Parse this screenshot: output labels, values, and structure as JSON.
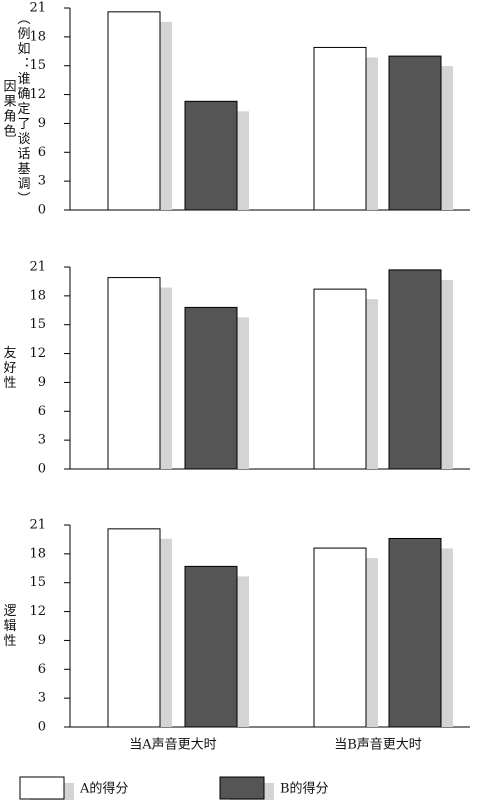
{
  "chart_data": [
    {
      "type": "bar",
      "y_label": [
        "因果角色",
        "（例如：谁确定了谈话基调）"
      ],
      "categories": [
        null,
        null
      ],
      "series": [
        {
          "color": "#ffffff",
          "values": [
            20.6,
            16.9
          ]
        },
        {
          "color": "#555555",
          "values": [
            11.3,
            16.0
          ]
        }
      ],
      "ylim": [
        0,
        21
      ],
      "yticks": [
        0,
        3,
        6,
        9,
        12,
        15,
        18,
        21
      ]
    },
    {
      "type": "bar",
      "y_label": [
        "友好性"
      ],
      "categories": [
        null,
        null
      ],
      "series": [
        {
          "color": "#ffffff",
          "values": [
            19.9,
            18.7
          ]
        },
        {
          "color": "#555555",
          "values": [
            16.8,
            20.7
          ]
        }
      ],
      "ylim": [
        0,
        21
      ],
      "yticks": [
        0,
        3,
        6,
        9,
        12,
        15,
        18,
        21
      ]
    },
    {
      "type": "bar",
      "y_label": [
        "逻辑性"
      ],
      "categories": [
        "当A声音更大时",
        "当B声音更大时"
      ],
      "series": [
        {
          "name": "A的得分",
          "color": "#ffffff",
          "values": [
            20.6,
            18.6
          ]
        },
        {
          "name": "B的得分",
          "color": "#555555",
          "values": [
            16.7,
            19.6
          ]
        }
      ],
      "ylim": [
        0,
        21
      ],
      "yticks": [
        0,
        3,
        6,
        9,
        12,
        15,
        18,
        21
      ]
    }
  ]
}
